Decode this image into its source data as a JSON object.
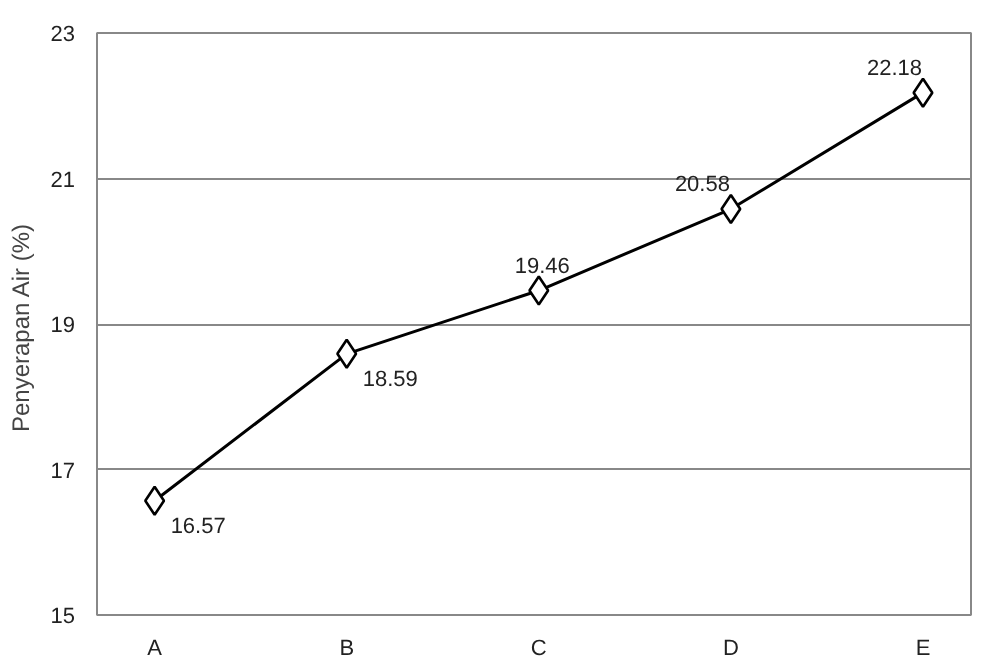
{
  "chart_data": {
    "type": "line",
    "ylabel": "Penyerapan Air  (%)",
    "categories": [
      "A",
      "B",
      "C",
      "D",
      "E"
    ],
    "series": [
      {
        "color": "#000000",
        "values": [
          16.57,
          18.59,
          19.46,
          20.58,
          22.18
        ]
      }
    ],
    "ylim": [
      15,
      23
    ],
    "yticks": [
      15,
      17,
      19,
      21,
      23
    ],
    "grid": "y",
    "marker": "diamond",
    "line_style": "solid",
    "data_labels": true
  }
}
